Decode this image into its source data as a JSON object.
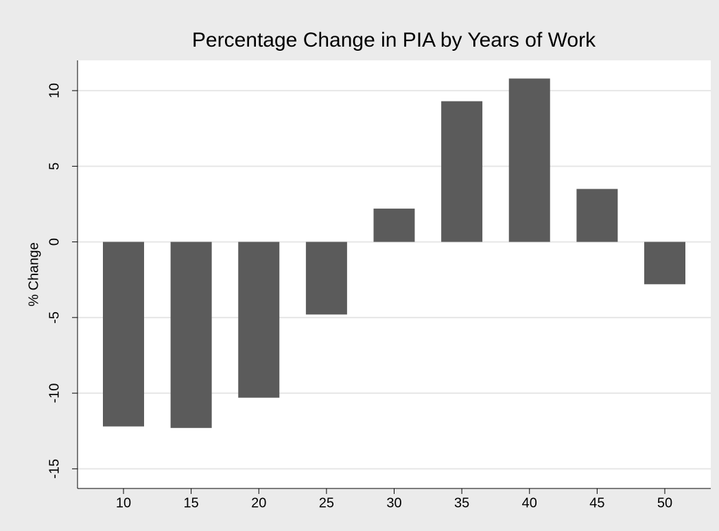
{
  "chart_data": {
    "type": "bar",
    "title": "Percentage Change in PIA by Years of Work",
    "ylabel": "% Change",
    "categories": [
      "10",
      "15",
      "20",
      "25",
      "30",
      "35",
      "40",
      "45",
      "50"
    ],
    "values": [
      -12.2,
      -12.3,
      -10.3,
      -4.8,
      2.2,
      9.3,
      10.8,
      3.5,
      -2.8
    ],
    "color": "#5b5b5b",
    "ylim": [
      -16.3,
      12
    ],
    "yticks": [
      -15,
      -10,
      -5,
      0,
      5,
      10
    ],
    "grid": true
  }
}
